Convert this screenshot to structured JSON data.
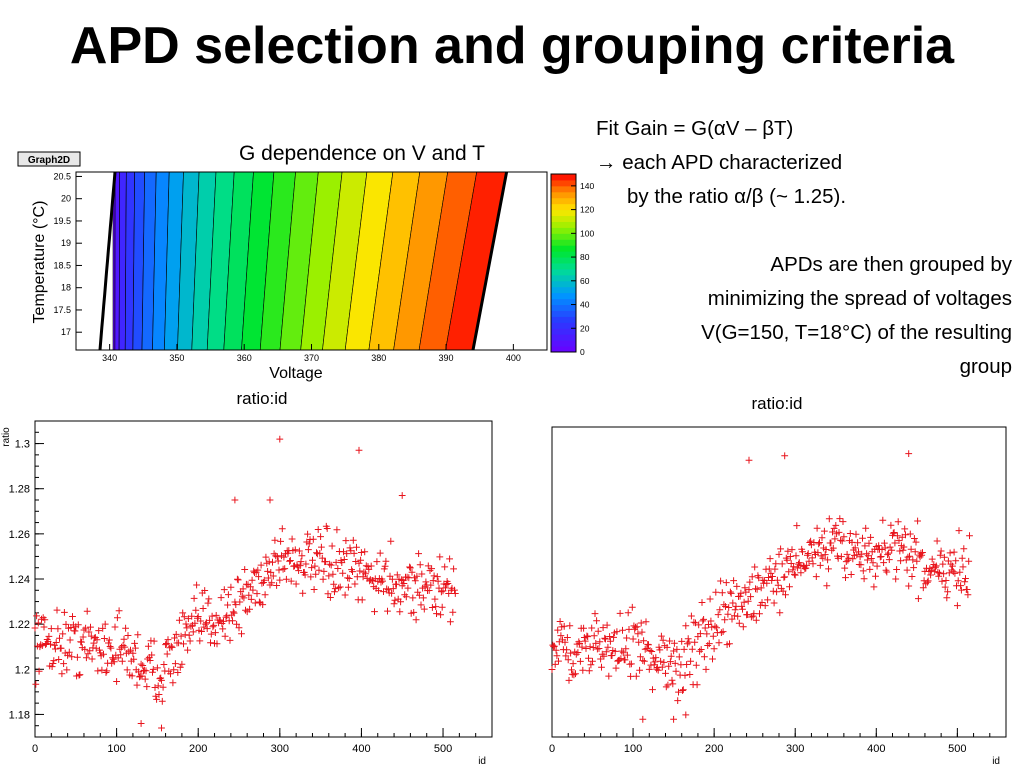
{
  "slide": {
    "title": "APD selection and grouping criteria",
    "notes": [
      "Fit Gain = G(αV – βT)",
      "→ each APD characterized",
      "by the ratio α/β (~ 1.25).",
      "APDs are then grouped by",
      "minimizing the spread of voltages",
      "V(G=150, T=18°C) of the resulting",
      "group"
    ]
  },
  "colors": {
    "marker": "#e8141c",
    "frame": "#000000",
    "palette_low": "#6a00ff",
    "palette_high": "#ff0000"
  },
  "chart_data": [
    {
      "type": "heatmap",
      "badge": "Graph2D",
      "title": "G dependence on V and T",
      "xlabel": "Voltage",
      "ylabel": "Temperature (°C)",
      "xlim": [
        335,
        405
      ],
      "ylim": [
        16.6,
        20.6
      ],
      "xticks": [
        "340",
        "350",
        "360",
        "370",
        "380",
        "390",
        "400"
      ],
      "yticks": [
        "17",
        "17.5",
        "18",
        "18.5",
        "19",
        "19.5",
        "20",
        "20.5"
      ],
      "zlim": [
        0,
        150
      ],
      "zticks": [
        "0",
        "20",
        "40",
        "60",
        "80",
        "100",
        "120",
        "140"
      ],
      "model": "G = f(αV – βT), α/β ≈ 1.25"
    },
    {
      "type": "scatter",
      "title": "ratio:id",
      "xlabel": "id",
      "ylabel": "ratio",
      "xlim": [
        0,
        560
      ],
      "ylim": [
        1.17,
        1.31
      ],
      "xticks": [
        "0",
        "100",
        "200",
        "300",
        "400",
        "500"
      ],
      "yticks": [
        "1.18",
        "1.2",
        "1.22",
        "1.24",
        "1.26",
        "1.28",
        "1.3"
      ],
      "trend": [
        [
          0,
          1.213
        ],
        [
          100,
          1.21
        ],
        [
          150,
          1.198
        ],
        [
          200,
          1.22
        ],
        [
          250,
          1.228
        ],
        [
          300,
          1.25
        ],
        [
          350,
          1.246
        ],
        [
          400,
          1.242
        ],
        [
          450,
          1.238
        ],
        [
          515,
          1.234
        ]
      ],
      "outliers": [
        [
          300,
          1.302
        ],
        [
          397,
          1.297
        ],
        [
          450,
          1.277
        ],
        [
          245,
          1.275
        ],
        [
          288,
          1.275
        ],
        [
          155,
          1.174
        ],
        [
          130,
          1.176
        ]
      ]
    },
    {
      "type": "scatter",
      "title": "ratio:id",
      "xlabel": "id",
      "ylabel": "",
      "xlim": [
        0,
        560
      ],
      "ylim": [
        1.17,
        1.31
      ],
      "xticks": [
        "0",
        "100",
        "200",
        "300",
        "400",
        "500"
      ],
      "yticks": [],
      "trend": [
        [
          0,
          1.212
        ],
        [
          100,
          1.21
        ],
        [
          150,
          1.2
        ],
        [
          200,
          1.22
        ],
        [
          250,
          1.235
        ],
        [
          300,
          1.25
        ],
        [
          350,
          1.256
        ],
        [
          400,
          1.252
        ],
        [
          450,
          1.25
        ],
        [
          515,
          1.245
        ]
      ],
      "outliers": [
        [
          440,
          1.298
        ],
        [
          287,
          1.297
        ],
        [
          243,
          1.295
        ],
        [
          150,
          1.178
        ],
        [
          112,
          1.178
        ],
        [
          165,
          1.18
        ]
      ]
    }
  ]
}
